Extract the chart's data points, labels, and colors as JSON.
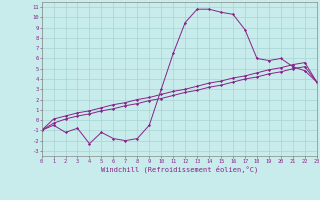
{
  "xlabel": "Windchill (Refroidissement éolien,°C)",
  "x_values": [
    0,
    1,
    2,
    3,
    4,
    5,
    6,
    7,
    8,
    9,
    10,
    11,
    12,
    13,
    14,
    15,
    16,
    17,
    18,
    19,
    20,
    21,
    22,
    23
  ],
  "line1_y": [
    -1.0,
    -0.5,
    -1.2,
    -0.8,
    -2.3,
    -1.2,
    -1.8,
    -2.0,
    -1.8,
    -0.5,
    3.0,
    6.5,
    9.5,
    10.8,
    10.8,
    10.5,
    10.3,
    8.8,
    6.0,
    5.8,
    6.0,
    5.2,
    4.8,
    3.7
  ],
  "line2_y": [
    -1.0,
    -0.3,
    0.1,
    0.4,
    0.6,
    0.9,
    1.1,
    1.4,
    1.6,
    1.9,
    2.1,
    2.4,
    2.7,
    2.9,
    3.2,
    3.4,
    3.7,
    4.0,
    4.2,
    4.5,
    4.7,
    5.0,
    5.2,
    3.7
  ],
  "line3_y": [
    -1.0,
    0.1,
    0.4,
    0.7,
    0.9,
    1.2,
    1.5,
    1.7,
    2.0,
    2.2,
    2.5,
    2.8,
    3.0,
    3.3,
    3.6,
    3.8,
    4.1,
    4.3,
    4.6,
    4.9,
    5.1,
    5.4,
    5.6,
    3.7
  ],
  "line_color": "#882288",
  "bg_color": "#c8ecec",
  "grid_color": "#a8d4d4",
  "ylim": [
    -3.5,
    11.5
  ],
  "ytick_min": -3,
  "ytick_max": 11,
  "xlim": [
    0,
    23
  ],
  "xticks": [
    0,
    1,
    2,
    3,
    4,
    5,
    6,
    7,
    8,
    9,
    10,
    11,
    12,
    13,
    14,
    15,
    16,
    17,
    18,
    19,
    20,
    21,
    22,
    23
  ]
}
